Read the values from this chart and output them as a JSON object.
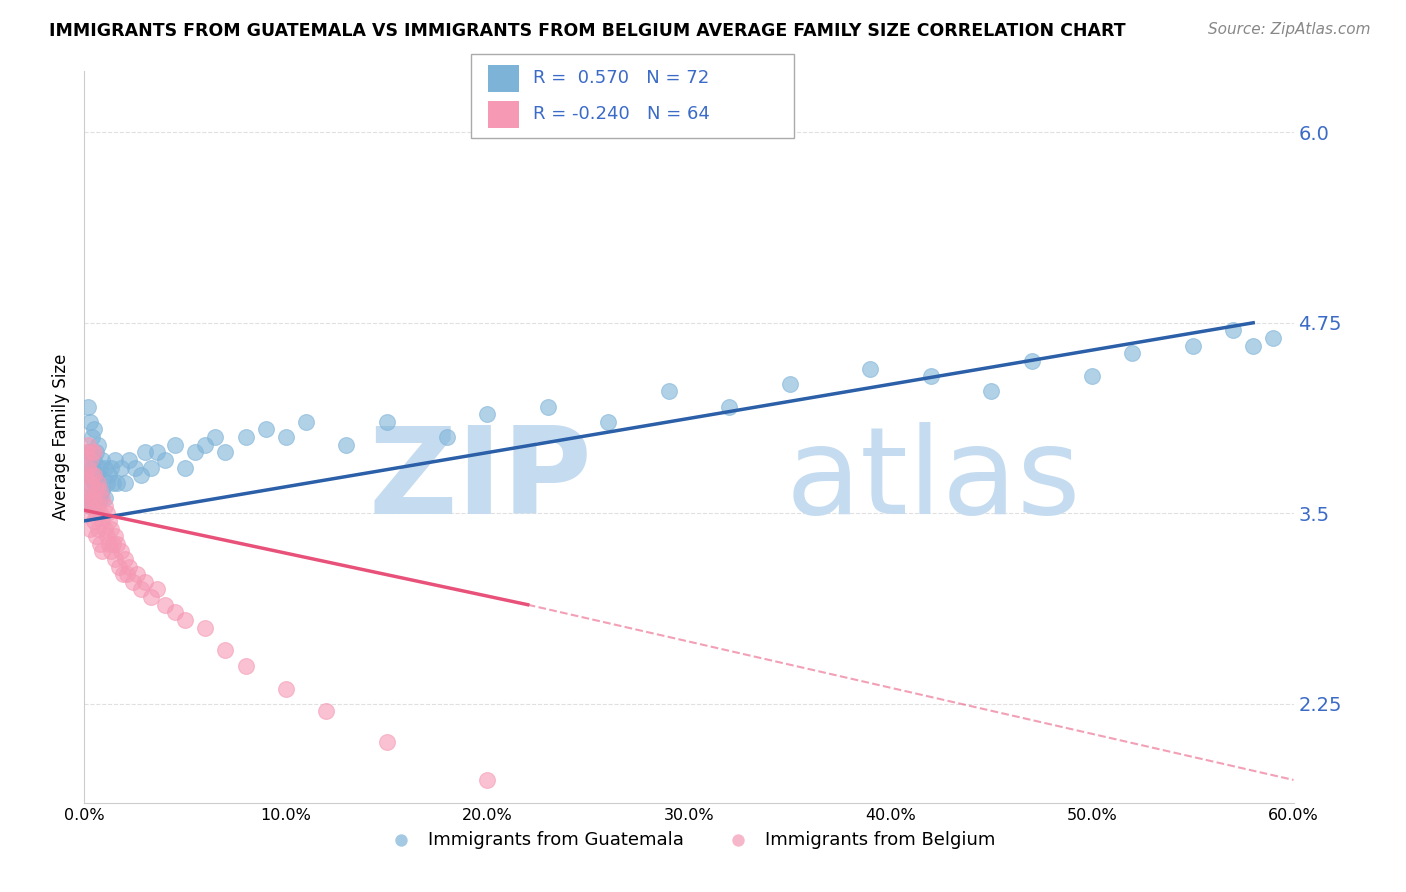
{
  "title": "IMMIGRANTS FROM GUATEMALA VS IMMIGRANTS FROM BELGIUM AVERAGE FAMILY SIZE CORRELATION CHART",
  "source": "Source: ZipAtlas.com",
  "ylabel": "Average Family Size",
  "yticks": [
    2.25,
    3.5,
    4.75,
    6.0
  ],
  "xlim": [
    0.0,
    0.6
  ],
  "ylim": [
    1.6,
    6.4
  ],
  "legend_labels": [
    "Immigrants from Guatemala",
    "Immigrants from Belgium"
  ],
  "R_guatemala": 0.57,
  "N_guatemala": 72,
  "R_belgium": -0.24,
  "N_belgium": 64,
  "color_guatemala": "#7EB3D8",
  "color_belgium": "#F599B4",
  "color_line_guatemala": "#2B5FA8",
  "color_line_belgium": "#E8527A",
  "watermark_zip": "ZIP",
  "watermark_atlas": "atlas",
  "watermark_color": "#C5DCF0",
  "background_color": "#FFFFFF",
  "title_fontsize": 12.5,
  "source_fontsize": 11,
  "grid_color": "#E0E0E0",
  "guatemala_x": [
    0.001,
    0.001,
    0.002,
    0.002,
    0.002,
    0.003,
    0.003,
    0.003,
    0.003,
    0.004,
    0.004,
    0.004,
    0.005,
    0.005,
    0.005,
    0.005,
    0.006,
    0.006,
    0.006,
    0.007,
    0.007,
    0.007,
    0.008,
    0.008,
    0.009,
    0.009,
    0.01,
    0.01,
    0.011,
    0.012,
    0.013,
    0.014,
    0.015,
    0.016,
    0.018,
    0.02,
    0.022,
    0.025,
    0.028,
    0.03,
    0.033,
    0.036,
    0.04,
    0.045,
    0.05,
    0.055,
    0.06,
    0.065,
    0.07,
    0.08,
    0.09,
    0.1,
    0.11,
    0.13,
    0.15,
    0.18,
    0.2,
    0.23,
    0.26,
    0.29,
    0.32,
    0.35,
    0.39,
    0.42,
    0.45,
    0.47,
    0.5,
    0.52,
    0.55,
    0.57,
    0.58,
    0.59
  ],
  "guatemala_y": [
    3.6,
    3.85,
    3.7,
    3.9,
    4.2,
    3.55,
    3.75,
    3.9,
    4.1,
    3.6,
    3.8,
    4.0,
    3.55,
    3.7,
    3.85,
    4.05,
    3.6,
    3.75,
    3.9,
    3.6,
    3.75,
    3.95,
    3.6,
    3.8,
    3.65,
    3.85,
    3.6,
    3.8,
    3.7,
    3.75,
    3.8,
    3.7,
    3.85,
    3.7,
    3.8,
    3.7,
    3.85,
    3.8,
    3.75,
    3.9,
    3.8,
    3.9,
    3.85,
    3.95,
    3.8,
    3.9,
    3.95,
    4.0,
    3.9,
    4.0,
    4.05,
    4.0,
    4.1,
    3.95,
    4.1,
    4.0,
    4.15,
    4.2,
    4.1,
    4.3,
    4.2,
    4.35,
    4.45,
    4.4,
    4.3,
    4.5,
    4.4,
    4.55,
    4.6,
    4.7,
    4.6,
    4.65
  ],
  "belgium_x": [
    0.001,
    0.001,
    0.001,
    0.002,
    0.002,
    0.002,
    0.002,
    0.003,
    0.003,
    0.003,
    0.003,
    0.004,
    0.004,
    0.004,
    0.005,
    0.005,
    0.005,
    0.005,
    0.006,
    0.006,
    0.006,
    0.007,
    0.007,
    0.007,
    0.008,
    0.008,
    0.008,
    0.009,
    0.009,
    0.009,
    0.01,
    0.01,
    0.011,
    0.011,
    0.012,
    0.012,
    0.013,
    0.013,
    0.014,
    0.015,
    0.015,
    0.016,
    0.017,
    0.018,
    0.019,
    0.02,
    0.021,
    0.022,
    0.024,
    0.026,
    0.028,
    0.03,
    0.033,
    0.036,
    0.04,
    0.045,
    0.05,
    0.06,
    0.07,
    0.08,
    0.1,
    0.12,
    0.15,
    0.2
  ],
  "belgium_y": [
    3.6,
    3.75,
    3.9,
    3.5,
    3.65,
    3.8,
    3.95,
    3.55,
    3.7,
    3.85,
    3.4,
    3.6,
    3.75,
    3.9,
    3.45,
    3.6,
    3.75,
    3.9,
    3.5,
    3.65,
    3.35,
    3.55,
    3.7,
    3.4,
    3.5,
    3.65,
    3.3,
    3.45,
    3.6,
    3.25,
    3.4,
    3.55,
    3.35,
    3.5,
    3.3,
    3.45,
    3.25,
    3.4,
    3.3,
    3.35,
    3.2,
    3.3,
    3.15,
    3.25,
    3.1,
    3.2,
    3.1,
    3.15,
    3.05,
    3.1,
    3.0,
    3.05,
    2.95,
    3.0,
    2.9,
    2.85,
    2.8,
    2.75,
    2.6,
    2.5,
    2.35,
    2.2,
    2.0,
    1.75
  ],
  "line_guatemala_x0": 0.0,
  "line_guatemala_y0": 3.45,
  "line_guatemala_x1": 0.58,
  "line_guatemala_y1": 4.75,
  "line_belgium_solid_x0": 0.0,
  "line_belgium_solid_y0": 3.52,
  "line_belgium_solid_x1": 0.22,
  "line_belgium_solid_y1": 2.9,
  "line_belgium_dash_x1": 0.6,
  "line_belgium_dash_y1": 1.75
}
